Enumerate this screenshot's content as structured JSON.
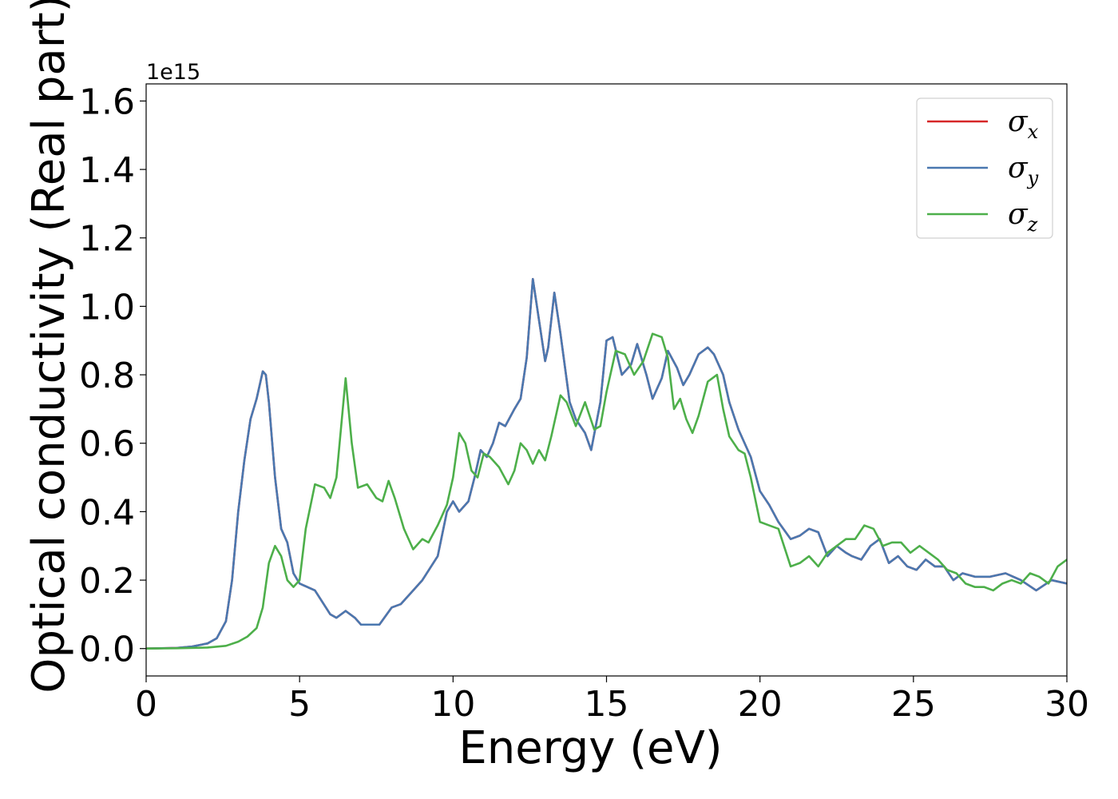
{
  "chart_data": {
    "type": "line",
    "title": "",
    "xlabel": "Energy (eV)",
    "ylabel": "Optical conductivity (Real part)",
    "y_offset_label": "1e15",
    "xlim": [
      0,
      30
    ],
    "ylim": [
      -0.08,
      1.65
    ],
    "xticks": [
      0,
      5,
      10,
      15,
      20,
      25,
      30
    ],
    "yticks": [
      0.0,
      0.2,
      0.4,
      0.6,
      0.8,
      1.0,
      1.2,
      1.4,
      1.6
    ],
    "xtick_labels": [
      "0",
      "5",
      "10",
      "15",
      "20",
      "25",
      "30"
    ],
    "ytick_labels": [
      "0.0",
      "0.2",
      "0.4",
      "0.6",
      "0.8",
      "1.0",
      "1.2",
      "1.4",
      "1.6"
    ],
    "grid": false,
    "legend_position": "top-right",
    "series": [
      {
        "name": "σx",
        "legend_symbol": "σ",
        "legend_sub": "x",
        "color": "#d62728",
        "x": [
          0,
          1,
          1.5,
          2,
          2.3,
          2.6,
          2.8,
          3.0,
          3.2,
          3.4,
          3.6,
          3.8,
          3.9,
          4.0,
          4.2,
          4.4,
          4.6,
          4.8,
          5.0,
          5.5,
          6.0,
          6.2,
          6.5,
          6.8,
          7.0,
          7.3,
          7.6,
          8.0,
          8.3,
          8.6,
          9.0,
          9.5,
          9.8,
          10.0,
          10.2,
          10.5,
          10.7,
          10.9,
          11.1,
          11.3,
          11.5,
          11.7,
          12.0,
          12.2,
          12.4,
          12.6,
          12.8,
          13.0,
          13.1,
          13.3,
          13.5,
          13.8,
          14.0,
          14.3,
          14.5,
          14.8,
          15.0,
          15.2,
          15.5,
          15.8,
          16.0,
          16.3,
          16.5,
          16.8,
          17.0,
          17.3,
          17.5,
          17.7,
          18.0,
          18.3,
          18.5,
          18.8,
          19.0,
          19.3,
          19.5,
          19.7,
          20.0,
          20.3,
          20.6,
          21.0,
          21.3,
          21.6,
          21.9,
          22.2,
          22.5,
          22.8,
          23.0,
          23.3,
          23.6,
          23.9,
          24.2,
          24.5,
          24.8,
          25.1,
          25.4,
          25.7,
          26.0,
          26.3,
          26.6,
          27.0,
          27.5,
          28.0,
          28.5,
          29.0,
          29.5,
          30.0
        ],
        "y": [
          0,
          0.002,
          0.006,
          0.015,
          0.03,
          0.08,
          0.2,
          0.4,
          0.55,
          0.67,
          0.73,
          0.81,
          0.8,
          0.72,
          0.5,
          0.35,
          0.31,
          0.22,
          0.19,
          0.17,
          0.1,
          0.09,
          0.11,
          0.09,
          0.07,
          0.07,
          0.07,
          0.12,
          0.13,
          0.16,
          0.2,
          0.27,
          0.4,
          0.43,
          0.4,
          0.43,
          0.5,
          0.58,
          0.56,
          0.6,
          0.66,
          0.65,
          0.7,
          0.73,
          0.85,
          1.08,
          0.96,
          0.84,
          0.88,
          1.04,
          0.92,
          0.72,
          0.67,
          0.63,
          0.58,
          0.72,
          0.9,
          0.91,
          0.8,
          0.83,
          0.89,
          0.8,
          0.73,
          0.79,
          0.87,
          0.82,
          0.77,
          0.8,
          0.86,
          0.88,
          0.86,
          0.8,
          0.72,
          0.64,
          0.6,
          0.56,
          0.46,
          0.42,
          0.37,
          0.32,
          0.33,
          0.35,
          0.34,
          0.27,
          0.3,
          0.28,
          0.27,
          0.26,
          0.3,
          0.32,
          0.25,
          0.27,
          0.24,
          0.23,
          0.26,
          0.24,
          0.24,
          0.2,
          0.22,
          0.21,
          0.21,
          0.22,
          0.2,
          0.17,
          0.2,
          0.19
        ]
      },
      {
        "name": "σy",
        "legend_symbol": "σ",
        "legend_sub": "y",
        "color": "#4a78b0",
        "x": [
          0,
          1,
          1.5,
          2,
          2.3,
          2.6,
          2.8,
          3.0,
          3.2,
          3.4,
          3.6,
          3.8,
          3.9,
          4.0,
          4.2,
          4.4,
          4.6,
          4.8,
          5.0,
          5.5,
          6.0,
          6.2,
          6.5,
          6.8,
          7.0,
          7.3,
          7.6,
          8.0,
          8.3,
          8.6,
          9.0,
          9.5,
          9.8,
          10.0,
          10.2,
          10.5,
          10.7,
          10.9,
          11.1,
          11.3,
          11.5,
          11.7,
          12.0,
          12.2,
          12.4,
          12.6,
          12.8,
          13.0,
          13.1,
          13.3,
          13.5,
          13.8,
          14.0,
          14.3,
          14.5,
          14.8,
          15.0,
          15.2,
          15.5,
          15.8,
          16.0,
          16.3,
          16.5,
          16.8,
          17.0,
          17.3,
          17.5,
          17.7,
          18.0,
          18.3,
          18.5,
          18.8,
          19.0,
          19.3,
          19.5,
          19.7,
          20.0,
          20.3,
          20.6,
          21.0,
          21.3,
          21.6,
          21.9,
          22.2,
          22.5,
          22.8,
          23.0,
          23.3,
          23.6,
          23.9,
          24.2,
          24.5,
          24.8,
          25.1,
          25.4,
          25.7,
          26.0,
          26.3,
          26.6,
          27.0,
          27.5,
          28.0,
          28.5,
          29.0,
          29.5,
          30.0
        ],
        "y": [
          0,
          0.002,
          0.006,
          0.015,
          0.03,
          0.08,
          0.2,
          0.4,
          0.55,
          0.67,
          0.73,
          0.81,
          0.8,
          0.72,
          0.5,
          0.35,
          0.31,
          0.22,
          0.19,
          0.17,
          0.1,
          0.09,
          0.11,
          0.09,
          0.07,
          0.07,
          0.07,
          0.12,
          0.13,
          0.16,
          0.2,
          0.27,
          0.4,
          0.43,
          0.4,
          0.43,
          0.5,
          0.58,
          0.56,
          0.6,
          0.66,
          0.65,
          0.7,
          0.73,
          0.85,
          1.08,
          0.96,
          0.84,
          0.88,
          1.04,
          0.92,
          0.72,
          0.67,
          0.63,
          0.58,
          0.72,
          0.9,
          0.91,
          0.8,
          0.83,
          0.89,
          0.8,
          0.73,
          0.79,
          0.87,
          0.82,
          0.77,
          0.8,
          0.86,
          0.88,
          0.86,
          0.8,
          0.72,
          0.64,
          0.6,
          0.56,
          0.46,
          0.42,
          0.37,
          0.32,
          0.33,
          0.35,
          0.34,
          0.27,
          0.3,
          0.28,
          0.27,
          0.26,
          0.3,
          0.32,
          0.25,
          0.27,
          0.24,
          0.23,
          0.26,
          0.24,
          0.24,
          0.2,
          0.22,
          0.21,
          0.21,
          0.22,
          0.2,
          0.17,
          0.2,
          0.19
        ]
      },
      {
        "name": "σz",
        "legend_symbol": "σ",
        "legend_sub": "z",
        "color": "#4daf4a",
        "x": [
          0,
          1,
          2,
          2.6,
          3.0,
          3.3,
          3.6,
          3.8,
          4.0,
          4.2,
          4.4,
          4.6,
          4.8,
          5.0,
          5.2,
          5.5,
          5.8,
          6.0,
          6.2,
          6.5,
          6.7,
          6.9,
          7.2,
          7.5,
          7.7,
          7.9,
          8.1,
          8.4,
          8.7,
          9.0,
          9.2,
          9.5,
          9.8,
          10.0,
          10.2,
          10.4,
          10.6,
          10.8,
          11.0,
          11.2,
          11.5,
          11.8,
          12.0,
          12.2,
          12.4,
          12.6,
          12.8,
          13.0,
          13.2,
          13.5,
          13.7,
          14.0,
          14.3,
          14.6,
          14.8,
          15.0,
          15.3,
          15.6,
          15.9,
          16.2,
          16.5,
          16.8,
          17.0,
          17.2,
          17.4,
          17.6,
          17.8,
          18.0,
          18.3,
          18.6,
          18.8,
          19.0,
          19.3,
          19.5,
          19.7,
          20.0,
          20.3,
          20.6,
          21.0,
          21.3,
          21.6,
          21.9,
          22.2,
          22.5,
          22.8,
          23.1,
          23.4,
          23.7,
          24.0,
          24.3,
          24.6,
          24.9,
          25.2,
          25.5,
          25.8,
          26.1,
          26.4,
          26.7,
          27.0,
          27.3,
          27.6,
          27.9,
          28.2,
          28.5,
          28.8,
          29.1,
          29.4,
          29.7,
          30.0
        ],
        "y": [
          0,
          0.001,
          0.003,
          0.008,
          0.02,
          0.035,
          0.06,
          0.12,
          0.25,
          0.3,
          0.27,
          0.2,
          0.18,
          0.2,
          0.35,
          0.48,
          0.47,
          0.44,
          0.5,
          0.79,
          0.6,
          0.47,
          0.48,
          0.44,
          0.43,
          0.49,
          0.44,
          0.35,
          0.29,
          0.32,
          0.31,
          0.36,
          0.42,
          0.5,
          0.63,
          0.6,
          0.52,
          0.5,
          0.57,
          0.56,
          0.53,
          0.48,
          0.52,
          0.6,
          0.58,
          0.54,
          0.58,
          0.55,
          0.62,
          0.74,
          0.72,
          0.65,
          0.72,
          0.64,
          0.65,
          0.75,
          0.87,
          0.86,
          0.8,
          0.84,
          0.92,
          0.91,
          0.85,
          0.7,
          0.73,
          0.67,
          0.63,
          0.68,
          0.78,
          0.8,
          0.7,
          0.62,
          0.58,
          0.57,
          0.5,
          0.37,
          0.36,
          0.35,
          0.24,
          0.25,
          0.27,
          0.24,
          0.28,
          0.3,
          0.32,
          0.32,
          0.36,
          0.35,
          0.3,
          0.31,
          0.31,
          0.28,
          0.3,
          0.28,
          0.26,
          0.23,
          0.22,
          0.19,
          0.18,
          0.18,
          0.17,
          0.19,
          0.2,
          0.19,
          0.22,
          0.21,
          0.19,
          0.24,
          0.26
        ]
      }
    ]
  }
}
